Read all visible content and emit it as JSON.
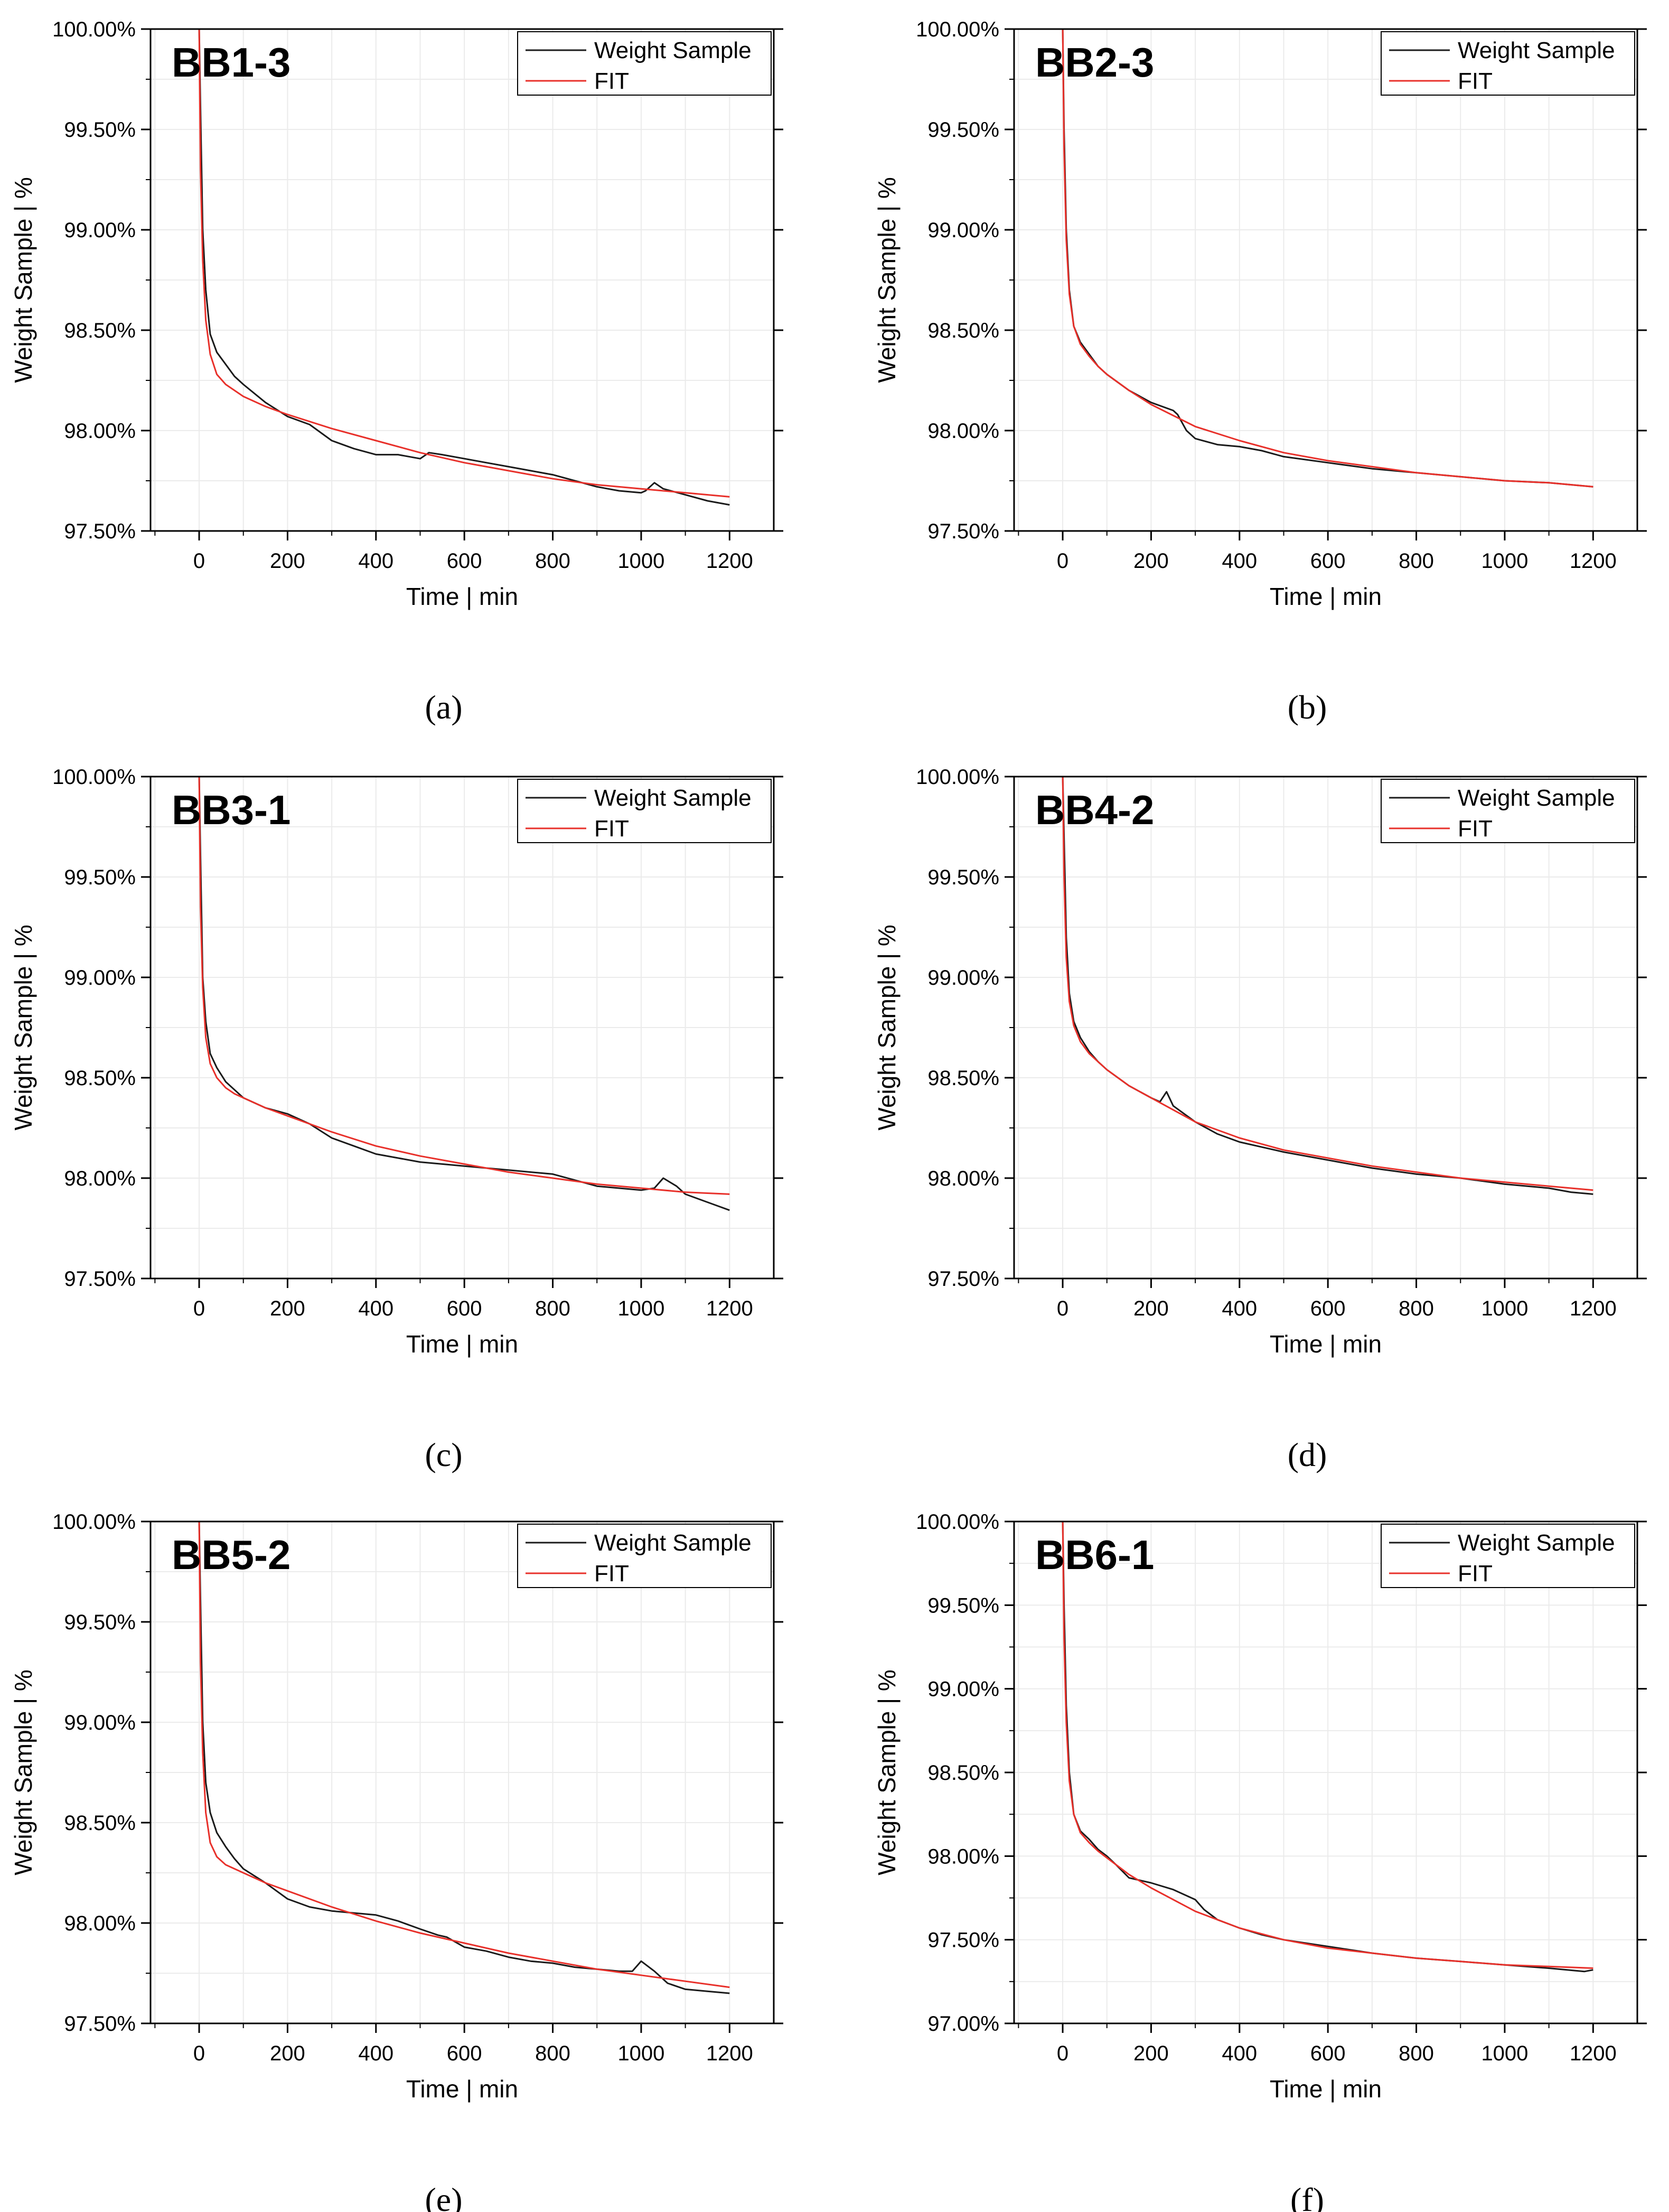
{
  "colors": {
    "sample": "#1a1a1a",
    "fit": "#e8302a",
    "grid": "#ebebeb",
    "axis": "#000000"
  },
  "chart_data": [
    {
      "type": "line",
      "caption": "(a)",
      "annotation": "BB1-3",
      "xlabel": "Time | min",
      "ylabel": "Weight Sample | %",
      "xlim": [
        -110,
        1300
      ],
      "ylim": [
        97.5,
        100.0
      ],
      "xticks": [
        0,
        200,
        400,
        600,
        800,
        1000,
        1200
      ],
      "yticks": [
        97.5,
        98.0,
        98.5,
        99.0,
        99.5,
        100.0
      ],
      "ytick_labels": [
        "97.50%",
        "98.00%",
        "98.50%",
        "99.00%",
        "99.50%",
        "100.00%"
      ],
      "legend": {
        "position": "top-right",
        "entries": [
          "Weight Sample",
          "FIT"
        ]
      },
      "grid": true,
      "series": [
        {
          "name": "Weight Sample",
          "color": "#1a1a1a",
          "x": [
            0,
            3,
            8,
            15,
            25,
            40,
            60,
            80,
            100,
            150,
            200,
            250,
            300,
            350,
            400,
            450,
            500,
            520,
            550,
            600,
            650,
            700,
            750,
            800,
            850,
            900,
            950,
            1000,
            1010,
            1030,
            1050,
            1100,
            1150,
            1200
          ],
          "y": [
            100.0,
            99.6,
            99.0,
            98.7,
            98.48,
            98.39,
            98.33,
            98.27,
            98.23,
            98.14,
            98.07,
            98.03,
            97.95,
            97.91,
            97.88,
            97.88,
            97.86,
            97.89,
            97.88,
            97.86,
            97.84,
            97.82,
            97.8,
            97.78,
            97.75,
            97.72,
            97.7,
            97.69,
            97.7,
            97.74,
            97.71,
            97.68,
            97.65,
            97.63
          ]
        },
        {
          "name": "FIT",
          "color": "#e8302a",
          "x": [
            0,
            3,
            8,
            15,
            25,
            40,
            60,
            80,
            100,
            150,
            200,
            300,
            400,
            500,
            600,
            700,
            800,
            900,
            1000,
            1100,
            1200
          ],
          "y": [
            100.0,
            99.3,
            98.85,
            98.55,
            98.38,
            98.28,
            98.23,
            98.2,
            98.17,
            98.12,
            98.08,
            98.01,
            97.95,
            97.89,
            97.84,
            97.8,
            97.76,
            97.73,
            97.71,
            97.69,
            97.67
          ]
        }
      ]
    },
    {
      "type": "line",
      "caption": "(b)",
      "annotation": "BB2-3",
      "xlabel": "Time | min",
      "ylabel": "Weight Sample | %",
      "xlim": [
        -110,
        1300
      ],
      "ylim": [
        97.5,
        100.0
      ],
      "xticks": [
        0,
        200,
        400,
        600,
        800,
        1000,
        1200
      ],
      "yticks": [
        97.5,
        98.0,
        98.5,
        99.0,
        99.5,
        100.0
      ],
      "ytick_labels": [
        "97.50%",
        "98.00%",
        "98.50%",
        "99.00%",
        "99.50%",
        "100.00%"
      ],
      "legend": {
        "position": "top-right",
        "entries": [
          "Weight Sample",
          "FIT"
        ]
      },
      "grid": true,
      "series": [
        {
          "name": "Weight Sample",
          "color": "#1a1a1a",
          "x": [
            0,
            3,
            8,
            15,
            25,
            40,
            60,
            80,
            100,
            150,
            200,
            250,
            260,
            280,
            300,
            350,
            400,
            450,
            500,
            600,
            700,
            800,
            900,
            1000,
            1100,
            1200
          ],
          "y": [
            100.0,
            99.5,
            99.0,
            98.7,
            98.52,
            98.44,
            98.38,
            98.32,
            98.28,
            98.2,
            98.14,
            98.1,
            98.08,
            98.0,
            97.96,
            97.93,
            97.92,
            97.9,
            97.87,
            97.84,
            97.81,
            97.79,
            97.77,
            97.75,
            97.74,
            97.72
          ]
        },
        {
          "name": "FIT",
          "color": "#e8302a",
          "x": [
            0,
            3,
            8,
            15,
            25,
            40,
            60,
            80,
            100,
            150,
            200,
            300,
            400,
            500,
            600,
            700,
            800,
            900,
            1000,
            1100,
            1200
          ],
          "y": [
            100.0,
            99.4,
            98.95,
            98.68,
            98.52,
            98.43,
            98.37,
            98.32,
            98.28,
            98.2,
            98.13,
            98.02,
            97.95,
            97.89,
            97.85,
            97.82,
            97.79,
            97.77,
            97.75,
            97.74,
            97.72
          ]
        }
      ]
    },
    {
      "type": "line",
      "caption": "(c)",
      "annotation": "BB3-1",
      "xlabel": "Time | min",
      "ylabel": "Weight Sample | %",
      "xlim": [
        -110,
        1300
      ],
      "ylim": [
        97.5,
        100.0
      ],
      "xticks": [
        0,
        200,
        400,
        600,
        800,
        1000,
        1200
      ],
      "yticks": [
        97.5,
        98.0,
        98.5,
        99.0,
        99.5,
        100.0
      ],
      "ytick_labels": [
        "97.50%",
        "98.00%",
        "98.50%",
        "99.00%",
        "99.50%",
        "100.00%"
      ],
      "legend": {
        "position": "top-right",
        "entries": [
          "Weight Sample",
          "FIT"
        ]
      },
      "grid": true,
      "series": [
        {
          "name": "Weight Sample",
          "color": "#1a1a1a",
          "x": [
            0,
            3,
            8,
            15,
            25,
            40,
            60,
            80,
            100,
            150,
            200,
            250,
            300,
            350,
            400,
            450,
            500,
            550,
            600,
            650,
            700,
            750,
            800,
            850,
            900,
            950,
            1000,
            1030,
            1050,
            1080,
            1100,
            1150,
            1200
          ],
          "y": [
            100.0,
            99.6,
            99.0,
            98.78,
            98.62,
            98.55,
            98.48,
            98.44,
            98.4,
            98.35,
            98.32,
            98.27,
            98.2,
            98.16,
            98.12,
            98.1,
            98.08,
            98.07,
            98.06,
            98.05,
            98.04,
            98.03,
            98.02,
            97.99,
            97.96,
            97.95,
            97.94,
            97.95,
            98.0,
            97.96,
            97.92,
            97.88,
            97.84
          ]
        },
        {
          "name": "FIT",
          "color": "#e8302a",
          "x": [
            0,
            3,
            8,
            15,
            25,
            40,
            60,
            80,
            100,
            150,
            200,
            300,
            400,
            500,
            600,
            700,
            800,
            900,
            1000,
            1100,
            1200
          ],
          "y": [
            100.0,
            99.35,
            98.95,
            98.7,
            98.57,
            98.5,
            98.45,
            98.42,
            98.4,
            98.35,
            98.31,
            98.23,
            98.16,
            98.11,
            98.07,
            98.03,
            98.0,
            97.97,
            97.95,
            97.93,
            97.92
          ]
        }
      ]
    },
    {
      "type": "line",
      "caption": "(d)",
      "annotation": "BB4-2",
      "xlabel": "Time | min",
      "ylabel": "Weight Sample | %",
      "xlim": [
        -110,
        1300
      ],
      "ylim": [
        97.5,
        100.0
      ],
      "xticks": [
        0,
        200,
        400,
        600,
        800,
        1000,
        1200
      ],
      "yticks": [
        97.5,
        98.0,
        98.5,
        99.0,
        99.5,
        100.0
      ],
      "ytick_labels": [
        "97.50%",
        "98.00%",
        "98.50%",
        "99.00%",
        "99.50%",
        "100.00%"
      ],
      "legend": {
        "position": "top-right",
        "entries": [
          "Weight Sample",
          "FIT"
        ]
      },
      "grid": true,
      "series": [
        {
          "name": "Weight Sample",
          "color": "#1a1a1a",
          "x": [
            0,
            3,
            8,
            15,
            25,
            40,
            60,
            80,
            100,
            150,
            200,
            220,
            235,
            250,
            300,
            350,
            400,
            500,
            600,
            700,
            800,
            900,
            1000,
            1100,
            1150,
            1200
          ],
          "y": [
            100.0,
            99.7,
            99.2,
            98.92,
            98.78,
            98.7,
            98.63,
            98.58,
            98.54,
            98.46,
            98.4,
            98.38,
            98.43,
            98.36,
            98.28,
            98.22,
            98.18,
            98.13,
            98.09,
            98.05,
            98.02,
            98.0,
            97.97,
            97.95,
            97.93,
            97.92
          ]
        },
        {
          "name": "FIT",
          "color": "#e8302a",
          "x": [
            0,
            3,
            8,
            15,
            25,
            40,
            60,
            80,
            100,
            150,
            200,
            300,
            400,
            500,
            600,
            700,
            800,
            900,
            1000,
            1100,
            1200
          ],
          "y": [
            100.0,
            99.5,
            99.1,
            98.88,
            98.76,
            98.68,
            98.62,
            98.58,
            98.54,
            98.46,
            98.4,
            98.28,
            98.2,
            98.14,
            98.1,
            98.06,
            98.03,
            98.0,
            97.98,
            97.96,
            97.94
          ]
        }
      ]
    },
    {
      "type": "line",
      "caption": "(e)",
      "annotation": "BB5-2",
      "xlabel": "Time | min",
      "ylabel": "Weight Sample | %",
      "xlim": [
        -110,
        1300
      ],
      "ylim": [
        97.5,
        100.0
      ],
      "xticks": [
        0,
        200,
        400,
        600,
        800,
        1000,
        1200
      ],
      "yticks": [
        97.5,
        98.0,
        98.5,
        99.0,
        99.5,
        100.0
      ],
      "ytick_labels": [
        "97.50%",
        "98.00%",
        "98.50%",
        "99.00%",
        "99.50%",
        "100.00%"
      ],
      "legend": {
        "position": "top-right",
        "entries": [
          "Weight Sample",
          "FIT"
        ]
      },
      "grid": true,
      "series": [
        {
          "name": "Weight Sample",
          "color": "#1a1a1a",
          "x": [
            0,
            3,
            8,
            15,
            25,
            40,
            60,
            80,
            100,
            150,
            200,
            250,
            300,
            350,
            400,
            450,
            500,
            540,
            560,
            600,
            650,
            700,
            750,
            800,
            850,
            900,
            950,
            980,
            1000,
            1030,
            1060,
            1100,
            1150,
            1200
          ],
          "y": [
            100.0,
            99.6,
            99.0,
            98.7,
            98.55,
            98.45,
            98.38,
            98.32,
            98.27,
            98.2,
            98.12,
            98.08,
            98.06,
            98.05,
            98.04,
            98.01,
            97.97,
            97.94,
            97.93,
            97.88,
            97.86,
            97.83,
            97.81,
            97.8,
            97.78,
            97.77,
            97.76,
            97.76,
            97.81,
            97.76,
            97.7,
            97.67,
            97.66,
            97.65
          ]
        },
        {
          "name": "FIT",
          "color": "#e8302a",
          "x": [
            0,
            3,
            8,
            15,
            25,
            40,
            60,
            80,
            100,
            150,
            200,
            300,
            400,
            500,
            600,
            700,
            800,
            900,
            1000,
            1100,
            1200
          ],
          "y": [
            100.0,
            99.3,
            98.85,
            98.55,
            98.4,
            98.33,
            98.29,
            98.27,
            98.25,
            98.2,
            98.16,
            98.08,
            98.01,
            97.95,
            97.9,
            97.85,
            97.81,
            97.77,
            97.74,
            97.71,
            97.68
          ]
        }
      ]
    },
    {
      "type": "line",
      "caption": "(f)",
      "annotation": "BB6-1",
      "xlabel": "Time | min",
      "ylabel": "Weight Sample | %",
      "xlim": [
        -110,
        1300
      ],
      "ylim": [
        97.0,
        100.0
      ],
      "xticks": [
        0,
        200,
        400,
        600,
        800,
        1000,
        1200
      ],
      "yticks": [
        97.0,
        97.5,
        98.0,
        98.5,
        99.0,
        99.5,
        100.0
      ],
      "ytick_labels": [
        "97.00%",
        "97.50%",
        "98.00%",
        "98.50%",
        "99.00%",
        "99.50%",
        "100.00%"
      ],
      "legend": {
        "position": "top-right",
        "entries": [
          "Weight Sample",
          "FIT"
        ]
      },
      "grid": true,
      "series": [
        {
          "name": "Weight Sample",
          "color": "#1a1a1a",
          "x": [
            0,
            3,
            8,
            15,
            25,
            40,
            60,
            80,
            100,
            120,
            150,
            200,
            250,
            300,
            320,
            350,
            400,
            450,
            500,
            600,
            700,
            800,
            900,
            1000,
            1100,
            1180,
            1200
          ],
          "y": [
            100.0,
            99.5,
            98.9,
            98.5,
            98.25,
            98.15,
            98.1,
            98.04,
            98.0,
            97.95,
            97.87,
            97.84,
            97.8,
            97.74,
            97.68,
            97.62,
            97.57,
            97.53,
            97.5,
            97.46,
            97.42,
            97.39,
            97.37,
            97.35,
            97.33,
            97.31,
            97.32
          ]
        },
        {
          "name": "FIT",
          "color": "#e8302a",
          "x": [
            0,
            3,
            8,
            15,
            25,
            40,
            60,
            80,
            100,
            150,
            200,
            300,
            400,
            500,
            600,
            700,
            800,
            900,
            1000,
            1100,
            1200
          ],
          "y": [
            100.0,
            99.3,
            98.8,
            98.45,
            98.25,
            98.14,
            98.08,
            98.03,
            97.99,
            97.89,
            97.81,
            97.67,
            97.57,
            97.5,
            97.45,
            97.42,
            97.39,
            97.37,
            97.35,
            97.34,
            97.33
          ]
        }
      ]
    }
  ]
}
